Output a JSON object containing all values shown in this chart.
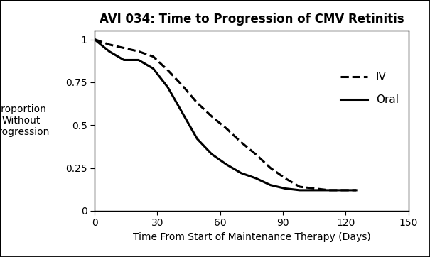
{
  "title": "AVI 034: Time to Progression of CMV Retinitis",
  "xlabel": "Time From Start of Maintenance Therapy (Days)",
  "ylabel": "Proportion\nWithout\nProgression",
  "xlim": [
    0,
    150
  ],
  "ylim": [
    0,
    1.05
  ],
  "xticks": [
    0,
    30,
    60,
    90,
    120,
    150
  ],
  "yticks": [
    0,
    0.25,
    0.5,
    0.75,
    1
  ],
  "ytick_labels": [
    "0",
    "0.25",
    "0.5",
    "0.75",
    "1"
  ],
  "iv_x": [
    0,
    7,
    14,
    21,
    28,
    35,
    42,
    49,
    56,
    63,
    70,
    77,
    84,
    91,
    98,
    105,
    112,
    119,
    125
  ],
  "iv_y": [
    1.0,
    0.97,
    0.95,
    0.93,
    0.9,
    0.82,
    0.73,
    0.63,
    0.55,
    0.48,
    0.4,
    0.33,
    0.25,
    0.19,
    0.14,
    0.13,
    0.12,
    0.12,
    0.12
  ],
  "oral_x": [
    0,
    7,
    14,
    21,
    28,
    35,
    42,
    49,
    56,
    63,
    70,
    77,
    84,
    91,
    98,
    105,
    112,
    119,
    125
  ],
  "oral_y": [
    1.0,
    0.93,
    0.88,
    0.88,
    0.83,
    0.72,
    0.57,
    0.42,
    0.33,
    0.27,
    0.22,
    0.19,
    0.15,
    0.13,
    0.12,
    0.12,
    0.12,
    0.12,
    0.12
  ],
  "iv_color": "#000000",
  "oral_color": "#000000",
  "iv_linestyle": "--",
  "oral_linestyle": "-",
  "linewidth": 2.2,
  "background_color": "#ffffff",
  "border_color": "#000000",
  "title_fontsize": 12,
  "label_fontsize": 10,
  "tick_fontsize": 10,
  "legend_fontsize": 11
}
